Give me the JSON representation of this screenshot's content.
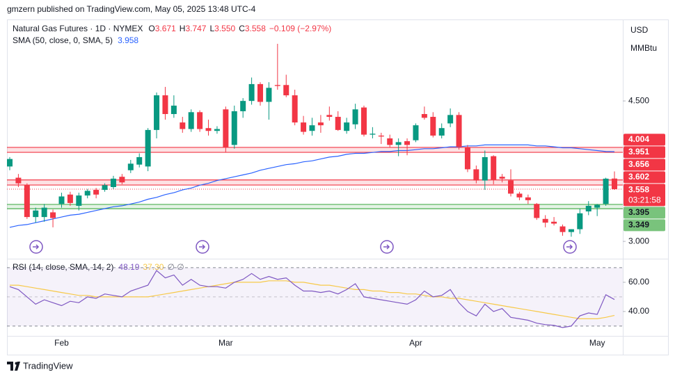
{
  "header": "gmzern published on TradingView.com, May 05, 2025 13:48 UTC-4",
  "footer": "TradingView",
  "chart_data": [
    {
      "type": "candlestick",
      "title": "Natural Gas Futures · 1D · NYMEX",
      "ohlc_labels": [
        "O",
        "H",
        "L",
        "C"
      ],
      "ohlc_values": [
        "3.671",
        "3.747",
        "3.550",
        "3.558"
      ],
      "change": "−0.109 (−2.97%)",
      "unit_labels": [
        "USD",
        "MMBtu"
      ],
      "categories": [
        null,
        null,
        null,
        null,
        null,
        null,
        "Feb",
        null,
        null,
        null,
        null,
        null,
        null,
        null,
        null,
        null,
        null,
        null,
        null,
        null,
        null,
        null,
        null,
        null,
        null,
        "Mar",
        null,
        null,
        null,
        null,
        null,
        null,
        null,
        null,
        null,
        null,
        null,
        null,
        null,
        null,
        null,
        null,
        null,
        null,
        null,
        null,
        null,
        "Apr",
        null,
        null,
        null,
        null,
        null,
        null,
        null,
        null,
        null,
        null,
        null,
        null,
        null,
        null,
        null,
        null,
        null,
        null,
        null,
        null,
        "May",
        null,
        null
      ],
      "up_color": "#089981",
      "down_color": "#f23645",
      "open": [
        3.8,
        3.68,
        3.6,
        3.26,
        3.26,
        3.31,
        3.4,
        3.5,
        3.38,
        3.49,
        3.55,
        3.55,
        3.58,
        3.69,
        3.76,
        3.82,
        3.8,
        4.19,
        4.56,
        4.36,
        4.27,
        4.2,
        4.38,
        4.21,
        4.18,
        4.41,
        4.03,
        4.39,
        4.5,
        4.68,
        4.49,
        4.67,
        4.67,
        4.56,
        4.27,
        4.18,
        4.27,
        4.35,
        4.33,
        4.18,
        4.25,
        4.43,
        4.14,
        4.13,
        4.1,
        4.03,
        4.07,
        4.08,
        4.36,
        4.33,
        4.13,
        4.26,
        4.35,
        4.0,
        3.77,
        3.65,
        3.91,
        3.69,
        3.65,
        3.51,
        3.47,
        3.4,
        3.24,
        3.21,
        3.16,
        3.1,
        3.13,
        3.32,
        3.36,
        3.4,
        3.671
      ],
      "high": [
        3.9,
        3.72,
        3.62,
        3.36,
        3.4,
        3.34,
        3.52,
        3.53,
        3.52,
        3.56,
        3.57,
        3.62,
        3.7,
        3.72,
        3.87,
        3.94,
        4.21,
        4.59,
        4.65,
        4.56,
        4.33,
        4.41,
        4.4,
        4.3,
        4.23,
        4.44,
        4.45,
        4.53,
        4.75,
        4.7,
        4.7,
        5.11,
        4.78,
        4.62,
        4.34,
        4.32,
        4.35,
        4.44,
        4.39,
        4.32,
        4.47,
        4.45,
        4.22,
        4.16,
        4.14,
        4.1,
        4.1,
        4.26,
        4.44,
        4.38,
        4.26,
        4.42,
        4.38,
        4.03,
        3.81,
        3.97,
        3.92,
        3.72,
        3.77,
        3.53,
        3.5,
        3.41,
        3.28,
        3.26,
        3.18,
        3.13,
        3.35,
        3.43,
        3.4,
        3.68,
        3.747
      ],
      "low": [
        3.76,
        3.58,
        3.24,
        3.2,
        3.21,
        3.15,
        3.36,
        3.38,
        3.33,
        3.46,
        3.46,
        3.53,
        3.56,
        3.61,
        3.73,
        3.79,
        3.75,
        4.1,
        4.3,
        4.32,
        4.16,
        4.17,
        4.17,
        4.13,
        4.15,
        3.95,
        3.99,
        4.32,
        4.46,
        4.45,
        4.3,
        4.62,
        4.54,
        4.24,
        4.14,
        4.13,
        4.16,
        4.29,
        4.18,
        4.15,
        4.2,
        4.12,
        4.1,
        4.04,
        4.0,
        3.91,
        3.92,
        4.06,
        4.3,
        4.11,
        4.1,
        4.22,
        3.98,
        3.74,
        3.62,
        3.55,
        3.61,
        3.63,
        3.48,
        3.44,
        3.4,
        3.23,
        3.15,
        3.17,
        3.06,
        3.05,
        3.08,
        3.28,
        3.27,
        3.38,
        3.55
      ],
      "close": [
        3.88,
        3.62,
        3.26,
        3.33,
        3.36,
        3.25,
        3.48,
        3.41,
        3.49,
        3.54,
        3.5,
        3.6,
        3.67,
        3.63,
        3.83,
        3.9,
        4.19,
        4.56,
        4.36,
        4.45,
        4.2,
        4.38,
        4.2,
        4.18,
        4.2,
        4.0,
        4.39,
        4.5,
        4.68,
        4.49,
        4.64,
        4.66,
        4.56,
        4.27,
        4.17,
        4.24,
        4.24,
        4.33,
        4.19,
        4.27,
        4.41,
        4.14,
        4.15,
        4.12,
        4.03,
        4.06,
        4.03,
        4.24,
        4.32,
        4.13,
        4.21,
        4.35,
        4.01,
        3.77,
        3.65,
        3.9,
        3.66,
        3.67,
        3.51,
        3.47,
        3.44,
        3.25,
        3.2,
        3.19,
        3.1,
        3.13,
        3.3,
        3.38,
        3.39,
        3.67,
        3.558
      ],
      "indicator": {
        "name": "SMA (50, close, 0, SMA, 5)",
        "value_label": "3.958",
        "color": "#2962ff",
        "values": [
          3.15,
          3.17,
          3.18,
          3.2,
          3.22,
          3.24,
          3.26,
          3.28,
          3.29,
          3.31,
          3.33,
          3.35,
          3.37,
          3.38,
          3.4,
          3.42,
          3.45,
          3.47,
          3.5,
          3.52,
          3.55,
          3.57,
          3.6,
          3.62,
          3.65,
          3.67,
          3.69,
          3.71,
          3.73,
          3.76,
          3.78,
          3.8,
          3.82,
          3.83,
          3.85,
          3.86,
          3.88,
          3.9,
          3.91,
          3.93,
          3.94,
          3.94,
          3.95,
          3.96,
          3.96,
          3.97,
          3.97,
          3.98,
          3.99,
          3.99,
          4.0,
          4.01,
          4.01,
          4.02,
          4.02,
          4.03,
          4.03,
          4.03,
          4.03,
          4.03,
          4.03,
          4.02,
          4.02,
          4.01,
          4.0,
          4.0,
          3.99,
          3.98,
          3.97,
          3.96,
          3.958
        ]
      },
      "bands": [
        {
          "high": 4.004,
          "low": 3.951,
          "color": "#f23645"
        },
        {
          "high": 3.656,
          "low": 3.602,
          "color": "#f23645"
        },
        {
          "high": 3.395,
          "low": 3.349,
          "color": "#4caf50"
        }
      ],
      "last_price": {
        "value": 3.558,
        "countdown": "03:21:58",
        "color": "#f23645"
      },
      "ylim": [
        2.83,
        5.37
      ],
      "yticks": [
        {
          "value": 4.5,
          "label": "4.500"
        },
        {
          "value": 3,
          "label": "3.000"
        }
      ]
    },
    {
      "type": "line",
      "title": "RSI (14, close, SMA, 14, 2)",
      "na_labels": "∅ ∅",
      "series": [
        {
          "color": "#7e57c2",
          "value_label": "48.19",
          "values": [
            57,
            55,
            50,
            45,
            48,
            46,
            44,
            47,
            46,
            50,
            49,
            52,
            51,
            50,
            54,
            56,
            58,
            68,
            63,
            65,
            58,
            62,
            58,
            57,
            57,
            56,
            60,
            62,
            66,
            62,
            64,
            62,
            63,
            58,
            54,
            54,
            53,
            54,
            52,
            55,
            59,
            50,
            49,
            48,
            47,
            46,
            45,
            48,
            54,
            50,
            51,
            55,
            46,
            40,
            37,
            45,
            40,
            42,
            36,
            35,
            34,
            32,
            31,
            30.5,
            29,
            30,
            37,
            39,
            38,
            51.5,
            48.19
          ]
        },
        {
          "color": "#f7c948",
          "value_label": "37.30",
          "values": [
            58,
            58,
            57,
            56,
            55,
            54,
            53,
            52,
            51,
            51,
            50,
            50,
            50,
            50,
            50,
            50,
            50,
            51,
            52,
            53,
            54,
            55,
            56,
            57,
            58,
            59,
            60,
            60,
            60,
            60,
            61,
            61,
            61,
            60,
            60,
            59,
            58,
            58,
            57,
            56,
            55,
            55,
            54,
            54,
            53,
            53,
            52,
            52,
            51,
            50,
            50,
            49,
            49,
            48,
            47,
            46,
            45,
            44,
            43,
            42,
            41,
            40,
            39,
            38,
            37,
            36,
            35,
            35,
            35,
            36,
            37.3
          ]
        }
      ],
      "levels": [
        70,
        50,
        30
      ],
      "ylim": [
        23.3,
        73.3
      ],
      "yticks": [
        {
          "value": 60,
          "label": "60.00"
        },
        {
          "value": 40,
          "label": "40.00"
        }
      ]
    }
  ]
}
